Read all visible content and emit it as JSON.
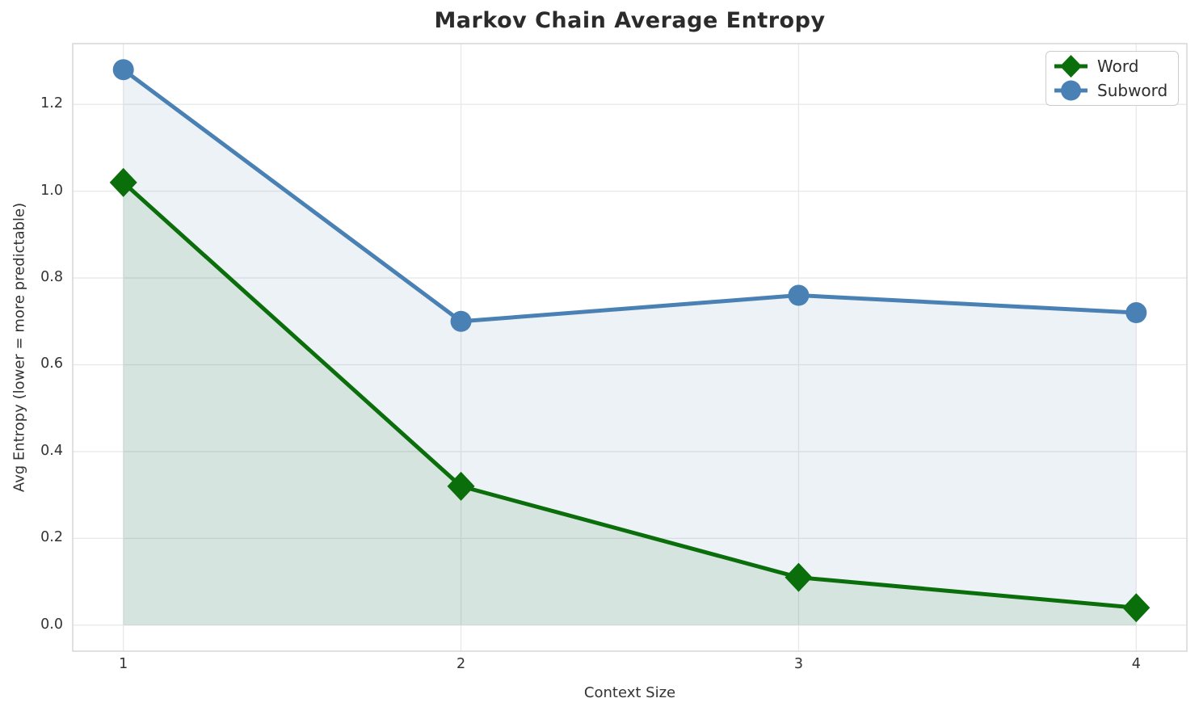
{
  "chart_data": {
    "type": "line",
    "title": "Markov Chain Average Entropy",
    "xlabel": "Context Size",
    "ylabel": "Avg Entropy (lower = more predictable)",
    "x": [
      1,
      2,
      3,
      4
    ],
    "x_tick_labels": [
      "1",
      "2",
      "3",
      "4"
    ],
    "y_ticks": [
      0.0,
      0.2,
      0.4,
      0.6,
      0.8,
      1.0,
      1.2
    ],
    "y_tick_labels": [
      "0.0",
      "0.2",
      "0.4",
      "0.6",
      "0.8",
      "1.0",
      "1.2"
    ],
    "xlim": [
      0.85,
      4.15
    ],
    "ylim": [
      -0.06,
      1.34
    ],
    "grid": true,
    "legend_position": "upper right",
    "series": [
      {
        "name": "Word",
        "marker": "diamond",
        "color": "#0a6e0a",
        "fill_to_zero": true,
        "values": [
          1.02,
          0.32,
          0.11,
          0.04
        ]
      },
      {
        "name": "Subword",
        "marker": "circle",
        "color": "#4a81b4",
        "fill_to_zero": true,
        "values": [
          1.28,
          0.7,
          0.76,
          0.72
        ]
      }
    ],
    "style": {
      "grid_color": "#e8e8e8",
      "spine_color": "#d8d8d8",
      "fill_opacity": 0.1,
      "line_width": 5,
      "title_color": "#2b2b2b",
      "text_color": "#333333",
      "background": "#ffffff"
    }
  }
}
